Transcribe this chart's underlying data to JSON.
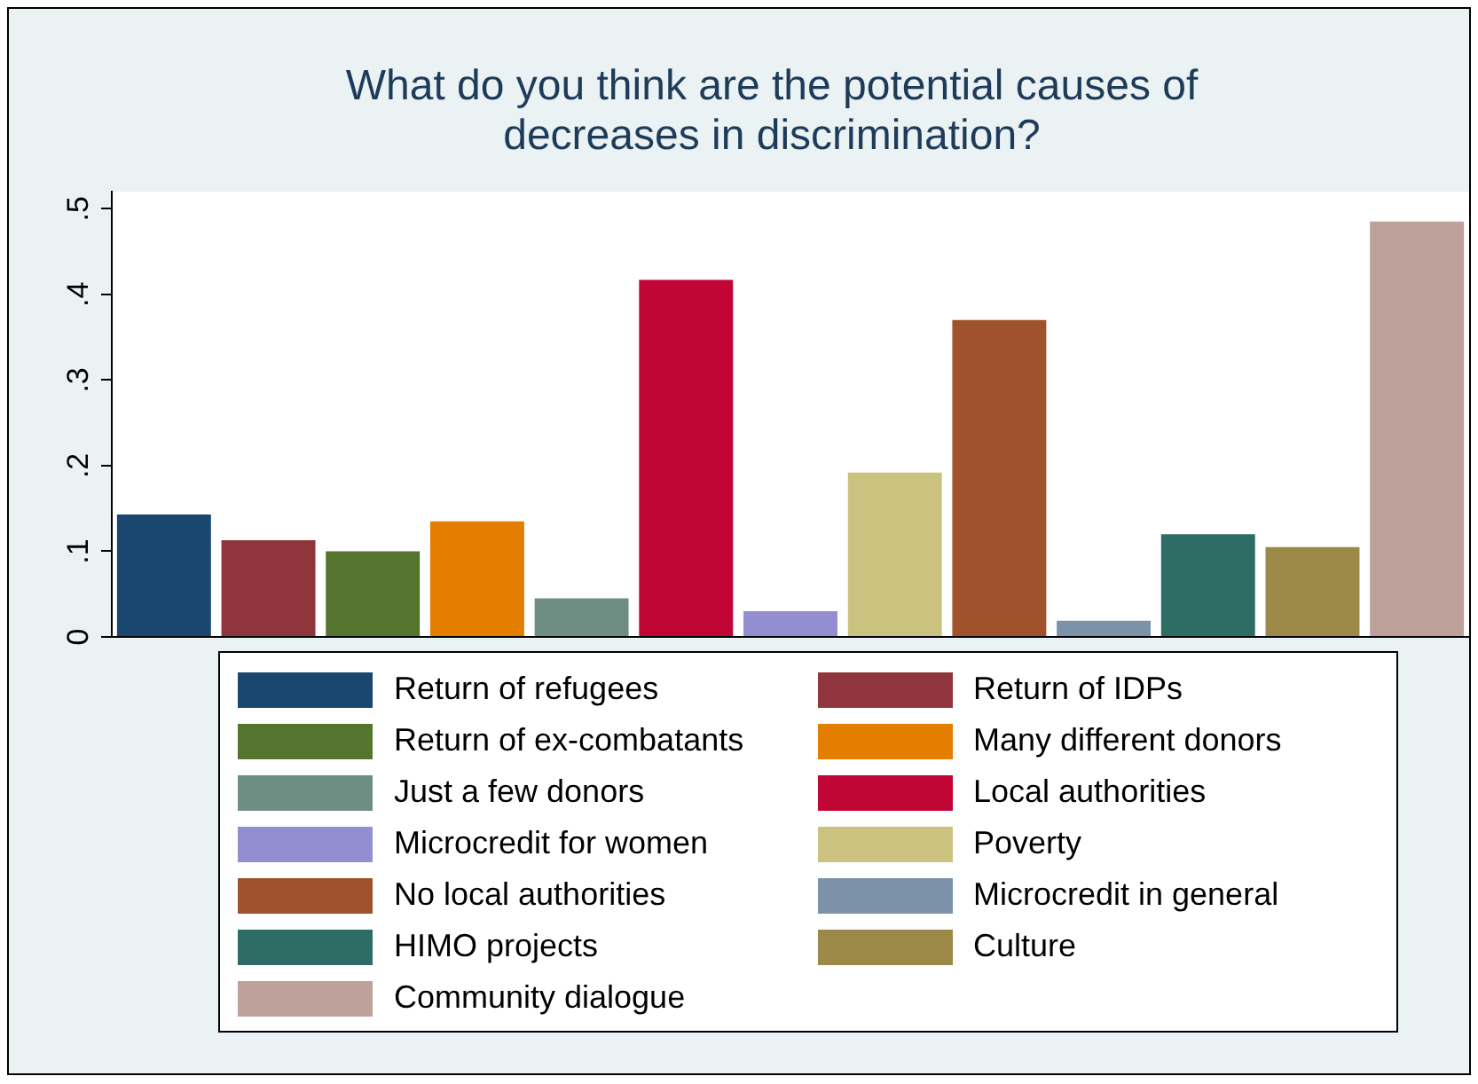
{
  "chart_data": {
    "type": "bar",
    "title": "What do you think are the potential causes of decreases in discrimination?",
    "categories": [
      null,
      null,
      null,
      null,
      null,
      null,
      null,
      null,
      null,
      null,
      null,
      null,
      null
    ],
    "ylim": [
      0,
      0.52
    ],
    "yticks": [
      0,
      {
        "value": 0.1,
        "label": ".1"
      },
      {
        "value": 0.2,
        "label": ".2"
      },
      {
        "value": 0.3,
        "label": ".3"
      },
      {
        "value": 0.4,
        "label": ".4"
      },
      {
        "value": 0.5,
        "label": ".5"
      }
    ],
    "grid": false,
    "legend": "bottom",
    "series": [
      {
        "name": "Return of refugees",
        "color": "#1a476f",
        "values": [
          0.143,
          null,
          null,
          null,
          null,
          null,
          null,
          null,
          null,
          null,
          null,
          null,
          null
        ]
      },
      {
        "name": "Return of IDPs",
        "color": "#90353b",
        "values": [
          null,
          0.113,
          null,
          null,
          null,
          null,
          null,
          null,
          null,
          null,
          null,
          null,
          null
        ]
      },
      {
        "name": "Return of ex-combatants",
        "color": "#55752f",
        "values": [
          null,
          null,
          0.1,
          null,
          null,
          null,
          null,
          null,
          null,
          null,
          null,
          null,
          null
        ]
      },
      {
        "name": "Many different donors",
        "color": "#e37e00",
        "values": [
          null,
          null,
          null,
          0.135,
          null,
          null,
          null,
          null,
          null,
          null,
          null,
          null,
          null
        ]
      },
      {
        "name": "Just a few donors",
        "color": "#6e8e84",
        "values": [
          null,
          null,
          null,
          null,
          0.045,
          null,
          null,
          null,
          null,
          null,
          null,
          null,
          null
        ]
      },
      {
        "name": "Local authorities",
        "color": "#c10534",
        "values": [
          null,
          null,
          null,
          null,
          null,
          0.417,
          null,
          null,
          null,
          null,
          null,
          null,
          null
        ]
      },
      {
        "name": "Microcredit for women",
        "color": "#938dd2",
        "values": [
          null,
          null,
          null,
          null,
          null,
          null,
          0.03,
          null,
          null,
          null,
          null,
          null,
          null
        ]
      },
      {
        "name": "Poverty",
        "color": "#cac27e",
        "values": [
          null,
          null,
          null,
          null,
          null,
          null,
          null,
          0.192,
          null,
          null,
          null,
          null,
          null
        ]
      },
      {
        "name": "No local authorities",
        "color": "#a0522d",
        "values": [
          null,
          null,
          null,
          null,
          null,
          null,
          null,
          null,
          0.37,
          null,
          null,
          null,
          null
        ]
      },
      {
        "name": "Microcredit in general",
        "color": "#7b92a8",
        "values": [
          null,
          null,
          null,
          null,
          null,
          null,
          null,
          null,
          null,
          0.019,
          null,
          null,
          null
        ]
      },
      {
        "name": "HIMO projects",
        "color": "#2d6d66",
        "values": [
          null,
          null,
          null,
          null,
          null,
          null,
          null,
          null,
          null,
          null,
          0.12,
          null,
          null
        ]
      },
      {
        "name": "Culture",
        "color": "#9c8847",
        "values": [
          null,
          null,
          null,
          null,
          null,
          null,
          null,
          null,
          null,
          null,
          null,
          0.105,
          null
        ]
      },
      {
        "name": "Community dialogue",
        "color": "#bfa19c",
        "values": [
          null,
          null,
          null,
          null,
          null,
          null,
          null,
          null,
          null,
          null,
          null,
          null,
          0.485
        ]
      }
    ]
  }
}
